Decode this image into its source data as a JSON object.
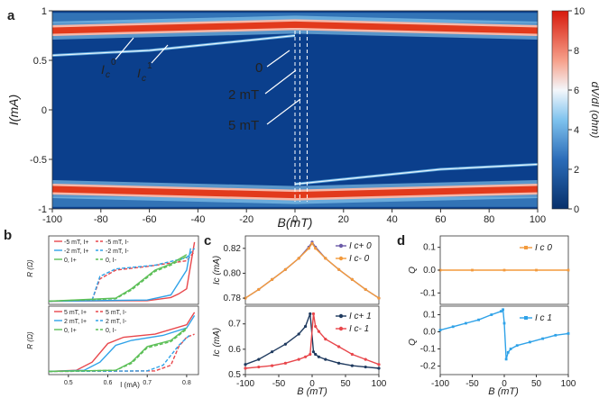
{
  "panel_a": {
    "letter": "a",
    "xlabel": "B(mT)",
    "ylabel": "I(mA)",
    "xticks": [
      "-100",
      "-80",
      "-60",
      "-40",
      "-20",
      "0",
      "20",
      "40",
      "60",
      "80",
      "100"
    ],
    "yticks": [
      "1",
      "0.5",
      "0",
      "-0.5",
      "-1"
    ],
    "annot_ic0_main": "I",
    "annot_ic0_sub": "c",
    "annot_ic0_sup": "0",
    "annot_ic1_main": "I",
    "annot_ic1_sub": "c",
    "annot_ic1_sup": "1",
    "annot_0": "0",
    "annot_2mt": "2 mT",
    "annot_5mt": "5 mT",
    "colorbar_label": "dV/dI (ohm)",
    "colorbar_ticks": [
      "10",
      "8",
      "6",
      "4",
      "2",
      "0"
    ]
  },
  "panel_b": {
    "letter": "b",
    "ylabel": "R (Ω)",
    "xlabel": "I (mA)",
    "xticks": [
      "0.5",
      "0.6",
      "0.7",
      "0.8"
    ],
    "top_legend": [
      "-5 mT, I+",
      "-5 mT, I-",
      "-2 mT, I+",
      "-2 mT, I-",
      "0, I+",
      "0, I-"
    ],
    "bottom_legend": [
      "5 mT, I+",
      "5 mT, I-",
      "2 mT, I+",
      "2 mT, I-",
      "0, I+",
      "0, I-"
    ]
  },
  "panel_c": {
    "letter": "c",
    "top_ylabel": "Ic (mA)",
    "bottom_ylabel": "Ic (mA)",
    "xlabel": "B (mT)",
    "top_yticks": [
      "0.82",
      "0.80",
      "0.78"
    ],
    "bottom_yticks": [
      "0.7",
      "0.6",
      "0.5"
    ],
    "xticks": [
      "-100",
      "-50",
      "0",
      "50",
      "100"
    ],
    "top_legend": [
      "I c+ 0",
      "I c- 0"
    ],
    "bottom_legend": [
      "I c+ 1",
      "I c- 1"
    ]
  },
  "panel_d": {
    "letter": "d",
    "ylabel": "Q",
    "xlabel": "B (mT)",
    "top_yticks": [
      "0.1",
      "0.0",
      "-0.1"
    ],
    "bottom_yticks": [
      "0.1",
      "0.0",
      "-0.1",
      "-0.2"
    ],
    "xticks": [
      "-100",
      "-50",
      "0",
      "50",
      "100"
    ],
    "top_legend": "I c 0",
    "bottom_legend": "I c 1"
  },
  "colors": {
    "map_bg": "#0b3f8c",
    "red_band": "#e23a1c",
    "orange": "#f39a3c",
    "navy": "#1f3a5f",
    "red": "#e8474c",
    "blue": "#2fa2e8",
    "green": "#5cbf57",
    "purple": "#6b5aa8"
  },
  "chart_data": [
    {
      "type": "heatmap",
      "panel": "a",
      "title": "",
      "xlabel": "B(mT)",
      "ylabel": "I(mA)",
      "xlim": [
        -100,
        100
      ],
      "ylim": [
        -1,
        1
      ],
      "zlabel": "dV/dI (ohm)",
      "zlim": [
        0,
        10
      ],
      "features": [
        {
          "name": "upper critical band",
          "B": [
            -100,
            0,
            100
          ],
          "I": [
            0.8,
            0.86,
            0.8
          ]
        },
        {
          "name": "lower critical band",
          "B": [
            -100,
            0,
            100
          ],
          "I": [
            -0.8,
            -0.86,
            -0.8
          ]
        },
        {
          "name": "Ic1 upper",
          "B": [
            -100,
            -60,
            0
          ],
          "I": [
            0.55,
            0.6,
            0.75
          ]
        },
        {
          "name": "Ic1 lower",
          "B": [
            0,
            60,
            100
          ],
          "I": [
            -0.75,
            -0.6,
            -0.55
          ]
        }
      ],
      "dashed_lines_B": [
        0,
        2,
        5
      ]
    },
    {
      "type": "line",
      "panel": "b-top",
      "xlabel": "I (mA)",
      "ylabel": "R (Ω)",
      "xlim": [
        0.45,
        0.83
      ],
      "series": [
        {
          "name": "-5 mT, I+",
          "x": [
            0.45,
            0.7,
            0.76,
            0.78,
            0.8,
            0.82
          ],
          "y": [
            0,
            0.01,
            0.06,
            0.12,
            0.2,
            0.95
          ]
        },
        {
          "name": "-5 mT, I-",
          "x": [
            0.45,
            0.56,
            0.58,
            0.62,
            0.7,
            0.8,
            0.82
          ],
          "y": [
            0,
            0.02,
            0.36,
            0.5,
            0.56,
            0.65,
            0.8
          ]
        },
        {
          "name": "-2 mT, I+",
          "x": [
            0.45,
            0.7,
            0.76,
            0.78,
            0.8,
            0.81
          ],
          "y": [
            0,
            0.02,
            0.1,
            0.3,
            0.5,
            0.85
          ]
        },
        {
          "name": "-2 mT, I-",
          "x": [
            0.45,
            0.56,
            0.58,
            0.62,
            0.72,
            0.8,
            0.82
          ],
          "y": [
            0,
            0.02,
            0.4,
            0.52,
            0.58,
            0.7,
            0.85
          ]
        },
        {
          "name": "0, I+",
          "x": [
            0.45,
            0.62,
            0.66,
            0.72,
            0.76,
            0.8
          ],
          "y": [
            0,
            0.05,
            0.2,
            0.5,
            0.6,
            0.75
          ]
        },
        {
          "name": "0, I-",
          "x": [
            0.45,
            0.62,
            0.66,
            0.72,
            0.76,
            0.8
          ],
          "y": [
            0,
            0.04,
            0.18,
            0.48,
            0.58,
            0.72
          ]
        }
      ]
    },
    {
      "type": "line",
      "panel": "b-bottom",
      "xlabel": "I (mA)",
      "ylabel": "R (Ω)",
      "xlim": [
        0.45,
        0.83
      ],
      "series": [
        {
          "name": "5 mT, I+",
          "x": [
            0.45,
            0.52,
            0.56,
            0.6,
            0.64,
            0.72,
            0.8,
            0.82
          ],
          "y": [
            0,
            0.02,
            0.15,
            0.45,
            0.55,
            0.6,
            0.75,
            0.95
          ]
        },
        {
          "name": "5 mT, I-",
          "x": [
            0.45,
            0.72,
            0.76,
            0.78,
            0.8,
            0.82
          ],
          "y": [
            0,
            0.01,
            0.1,
            0.4,
            0.55,
            0.6
          ]
        },
        {
          "name": "2 mT, I+",
          "x": [
            0.45,
            0.54,
            0.58,
            0.62,
            0.66,
            0.74,
            0.8,
            0.82
          ],
          "y": [
            0,
            0.02,
            0.15,
            0.42,
            0.5,
            0.58,
            0.7,
            0.9
          ]
        },
        {
          "name": "2 mT, I-",
          "x": [
            0.45,
            0.7,
            0.74,
            0.78,
            0.81
          ],
          "y": [
            0,
            0.01,
            0.1,
            0.42,
            0.6
          ]
        },
        {
          "name": "0, I+",
          "x": [
            0.45,
            0.62,
            0.66,
            0.7,
            0.76,
            0.8
          ],
          "y": [
            0,
            0.02,
            0.15,
            0.4,
            0.5,
            0.7
          ]
        },
        {
          "name": "0, I-",
          "x": [
            0.45,
            0.62,
            0.66,
            0.7,
            0.76,
            0.8
          ],
          "y": [
            0,
            0.02,
            0.13,
            0.38,
            0.48,
            0.68
          ]
        }
      ]
    },
    {
      "type": "scatter",
      "panel": "c-top",
      "xlabel": "B (mT)",
      "ylabel": "Ic (mA)",
      "xlim": [
        -100,
        100
      ],
      "ylim": [
        0.775,
        0.83
      ],
      "series": [
        {
          "name": "Ic+ 0",
          "x": [
            -100,
            -80,
            -60,
            -40,
            -20,
            -5,
            0,
            5,
            20,
            40,
            60,
            80,
            100
          ],
          "y": [
            0.78,
            0.787,
            0.795,
            0.803,
            0.812,
            0.821,
            0.825,
            0.821,
            0.812,
            0.803,
            0.795,
            0.787,
            0.78
          ]
        },
        {
          "name": "Ic- 0",
          "x": [
            -100,
            -80,
            -60,
            -40,
            -20,
            -5,
            0,
            5,
            20,
            40,
            60,
            80,
            100
          ],
          "y": [
            0.78,
            0.787,
            0.795,
            0.803,
            0.812,
            0.82,
            0.824,
            0.82,
            0.812,
            0.803,
            0.795,
            0.787,
            0.78
          ]
        }
      ]
    },
    {
      "type": "scatter",
      "panel": "c-bottom",
      "xlabel": "B (mT)",
      "ylabel": "Ic (mA)",
      "xlim": [
        -100,
        100
      ],
      "ylim": [
        0.5,
        0.77
      ],
      "series": [
        {
          "name": "Ic+ 1",
          "x": [
            -100,
            -80,
            -60,
            -40,
            -20,
            -10,
            -3,
            2,
            5,
            10,
            20,
            40,
            60,
            80,
            100
          ],
          "y": [
            0.54,
            0.56,
            0.59,
            0.62,
            0.66,
            0.69,
            0.74,
            0.59,
            0.58,
            0.57,
            0.56,
            0.545,
            0.535,
            0.53,
            0.525
          ]
        },
        {
          "name": "Ic- 1",
          "x": [
            -100,
            -80,
            -60,
            -40,
            -20,
            -10,
            -3,
            2,
            5,
            10,
            20,
            40,
            60,
            80,
            100
          ],
          "y": [
            0.525,
            0.53,
            0.535,
            0.545,
            0.56,
            0.57,
            0.58,
            0.74,
            0.69,
            0.67,
            0.64,
            0.61,
            0.58,
            0.56,
            0.54
          ]
        }
      ]
    },
    {
      "type": "line",
      "panel": "d-top",
      "xlabel": "B (mT)",
      "ylabel": "Q",
      "xlim": [
        -100,
        100
      ],
      "ylim": [
        -0.15,
        0.15
      ],
      "series": [
        {
          "name": "Ic 0",
          "x": [
            -100,
            -50,
            0,
            50,
            100
          ],
          "y": [
            0,
            0,
            0,
            0,
            0
          ]
        }
      ]
    },
    {
      "type": "line",
      "panel": "d-bottom",
      "xlabel": "B (mT)",
      "ylabel": "Q",
      "xlim": [
        -100,
        100
      ],
      "ylim": [
        -0.25,
        0.15
      ],
      "series": [
        {
          "name": "Ic 1",
          "x": [
            -100,
            -80,
            -60,
            -40,
            -20,
            -5,
            -2,
            0,
            3,
            6,
            10,
            20,
            40,
            60,
            80,
            100
          ],
          "y": [
            0.01,
            0.03,
            0.05,
            0.07,
            0.1,
            0.12,
            0.13,
            0.05,
            -0.16,
            -0.12,
            -0.1,
            -0.08,
            -0.06,
            -0.04,
            -0.02,
            -0.01
          ]
        }
      ]
    }
  ]
}
